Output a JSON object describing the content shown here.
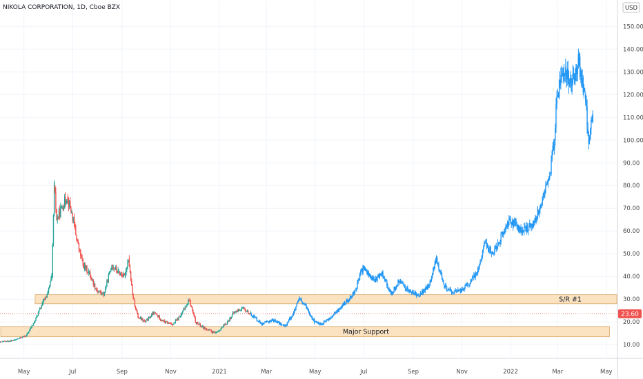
{
  "header": {
    "title": "NIKOLA CORPORATION, 1D, Cboe BZX"
  },
  "currency_label": "USD",
  "last_price": {
    "label": "23.60",
    "value": 23.6,
    "color": "#ef5350"
  },
  "colors": {
    "up": "#26a69a",
    "down": "#ef5350",
    "projection": "#2196f3",
    "zone_fill": "#fbe3c2",
    "zone_stroke": "#d9a76a"
  },
  "chart_data": {
    "type": "candlestick",
    "title": "NIKOLA CORPORATION, 1D, Cboe BZX",
    "ylim": [
      4,
      161
    ],
    "y_ticks": [
      {
        "value": 10,
        "label": "10.00"
      },
      {
        "value": 20,
        "label": "20.00"
      },
      {
        "value": 30,
        "label": "30.00"
      },
      {
        "value": 40,
        "label": "40.00"
      },
      {
        "value": 50,
        "label": "50.00"
      },
      {
        "value": 60,
        "label": "60.00"
      },
      {
        "value": 70,
        "label": "70.00"
      },
      {
        "value": 80,
        "label": "80.00"
      },
      {
        "value": 90,
        "label": "90.00"
      },
      {
        "value": 100,
        "label": "100.00"
      },
      {
        "value": 110,
        "label": "110.00"
      },
      {
        "value": 120,
        "label": "120.00"
      },
      {
        "value": 130,
        "label": "130.00"
      },
      {
        "value": 140,
        "label": "140.00"
      },
      {
        "value": 150,
        "label": "150.00"
      }
    ],
    "xlim": [
      "2020-04-01",
      "2022-05-15"
    ],
    "x_ticks": [
      {
        "date": "2020-05-01",
        "label": "May"
      },
      {
        "date": "2020-07-01",
        "label": "Jul"
      },
      {
        "date": "2020-09-01",
        "label": "Sep"
      },
      {
        "date": "2020-11-01",
        "label": "Nov"
      },
      {
        "date": "2021-01-01",
        "label": "2021"
      },
      {
        "date": "2021-03-01",
        "label": "Mar"
      },
      {
        "date": "2021-05-01",
        "label": "May"
      },
      {
        "date": "2021-07-01",
        "label": "Jul"
      },
      {
        "date": "2021-09-01",
        "label": "Sep"
      },
      {
        "date": "2021-11-01",
        "label": "Nov"
      },
      {
        "date": "2022-01-01",
        "label": "2022"
      },
      {
        "date": "2022-03-01",
        "label": "Mar"
      },
      {
        "date": "2022-05-01",
        "label": "May"
      }
    ],
    "series": [
      {
        "kind": "actual",
        "points": [
          {
            "date": "2020-04-01",
            "close": 11
          },
          {
            "date": "2020-04-20",
            "close": 12
          },
          {
            "date": "2020-05-05",
            "close": 14
          },
          {
            "date": "2020-05-15",
            "close": 20
          },
          {
            "date": "2020-05-25",
            "close": 28
          },
          {
            "date": "2020-06-01",
            "close": 33
          },
          {
            "date": "2020-06-06",
            "close": 40
          },
          {
            "date": "2020-06-09",
            "close": 80
          },
          {
            "date": "2020-06-12",
            "close": 65
          },
          {
            "date": "2020-06-18",
            "close": 70
          },
          {
            "date": "2020-06-25",
            "close": 75
          },
          {
            "date": "2020-07-01",
            "close": 68
          },
          {
            "date": "2020-07-08",
            "close": 55
          },
          {
            "date": "2020-07-15",
            "close": 45
          },
          {
            "date": "2020-07-22",
            "close": 42
          },
          {
            "date": "2020-08-01",
            "close": 34
          },
          {
            "date": "2020-08-10",
            "close": 32
          },
          {
            "date": "2020-08-20",
            "close": 45
          },
          {
            "date": "2020-08-28",
            "close": 42
          },
          {
            "date": "2020-09-05",
            "close": 40
          },
          {
            "date": "2020-09-10",
            "close": 48
          },
          {
            "date": "2020-09-15",
            "close": 32
          },
          {
            "date": "2020-09-22",
            "close": 22
          },
          {
            "date": "2020-10-01",
            "close": 20
          },
          {
            "date": "2020-10-12",
            "close": 24
          },
          {
            "date": "2020-10-25",
            "close": 20
          },
          {
            "date": "2020-11-05",
            "close": 19
          },
          {
            "date": "2020-11-15",
            "close": 23
          },
          {
            "date": "2020-11-25",
            "close": 30
          },
          {
            "date": "2020-12-03",
            "close": 20
          },
          {
            "date": "2020-12-15",
            "close": 17
          },
          {
            "date": "2020-12-28",
            "close": 15
          },
          {
            "date": "2021-01-10",
            "close": 19
          },
          {
            "date": "2021-01-20",
            "close": 24
          },
          {
            "date": "2021-01-30",
            "close": 26
          },
          {
            "date": "2021-02-10",
            "close": 23.6
          }
        ]
      },
      {
        "kind": "projection",
        "points": [
          {
            "date": "2021-02-10",
            "close": 23.6
          },
          {
            "date": "2021-02-25",
            "close": 19
          },
          {
            "date": "2021-03-10",
            "close": 21
          },
          {
            "date": "2021-03-25",
            "close": 18
          },
          {
            "date": "2021-04-05",
            "close": 24
          },
          {
            "date": "2021-04-12",
            "close": 30
          },
          {
            "date": "2021-04-22",
            "close": 26
          },
          {
            "date": "2021-05-01",
            "close": 20
          },
          {
            "date": "2021-05-10",
            "close": 19
          },
          {
            "date": "2021-05-22",
            "close": 22
          },
          {
            "date": "2021-06-05",
            "close": 27
          },
          {
            "date": "2021-06-20",
            "close": 33
          },
          {
            "date": "2021-07-01",
            "close": 44
          },
          {
            "date": "2021-07-15",
            "close": 38
          },
          {
            "date": "2021-07-25",
            "close": 42
          },
          {
            "date": "2021-08-05",
            "close": 32
          },
          {
            "date": "2021-08-15",
            "close": 38
          },
          {
            "date": "2021-08-30",
            "close": 33
          },
          {
            "date": "2021-09-10",
            "close": 32
          },
          {
            "date": "2021-09-22",
            "close": 36
          },
          {
            "date": "2021-10-01",
            "close": 48
          },
          {
            "date": "2021-10-10",
            "close": 36
          },
          {
            "date": "2021-10-20",
            "close": 33
          },
          {
            "date": "2021-11-01",
            "close": 34
          },
          {
            "date": "2021-11-12",
            "close": 37
          },
          {
            "date": "2021-11-22",
            "close": 43
          },
          {
            "date": "2021-12-01",
            "close": 55
          },
          {
            "date": "2021-12-10",
            "close": 50
          },
          {
            "date": "2021-12-22",
            "close": 58
          },
          {
            "date": "2022-01-01",
            "close": 65
          },
          {
            "date": "2022-01-15",
            "close": 60
          },
          {
            "date": "2022-01-28",
            "close": 62
          },
          {
            "date": "2022-02-05",
            "close": 68
          },
          {
            "date": "2022-02-12",
            "close": 75
          },
          {
            "date": "2022-02-20",
            "close": 85
          },
          {
            "date": "2022-02-26",
            "close": 100
          },
          {
            "date": "2022-03-01",
            "close": 120
          },
          {
            "date": "2022-03-05",
            "close": 125
          },
          {
            "date": "2022-03-12",
            "close": 130
          },
          {
            "date": "2022-03-20",
            "close": 125
          },
          {
            "date": "2022-03-28",
            "close": 135
          },
          {
            "date": "2022-04-05",
            "close": 120
          },
          {
            "date": "2022-04-10",
            "close": 100
          },
          {
            "date": "2022-04-15",
            "close": 112
          }
        ]
      }
    ],
    "zones": [
      {
        "label": "S/R #1",
        "low": 28,
        "high": 32,
        "from": "2020-05-15",
        "to": "2022-05-15"
      },
      {
        "label": "Major Support",
        "low": 13.5,
        "high": 18,
        "from": "2020-04-01",
        "to": "2022-05-05"
      }
    ],
    "reference_line": {
      "value": 23.6
    }
  }
}
